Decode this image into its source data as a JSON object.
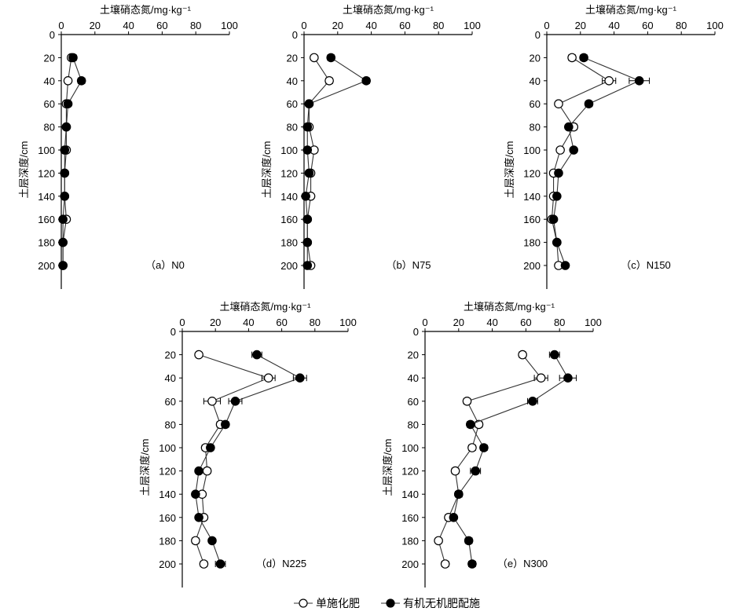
{
  "x_axis_title": "土壤硝态氮/mg·kg⁻¹",
  "y_axis_title": "土层深度/cm",
  "legend": {
    "single": "单施化肥",
    "organic": "有机无机肥配施"
  },
  "style": {
    "single_marker": "open-circle",
    "organic_marker": "filled-circle",
    "marker_stroke": "#000000",
    "single_fill": "#ffffff",
    "organic_fill": "#000000"
  },
  "chart_data": [
    {
      "type": "line",
      "label": "（a）N0",
      "xlabel": "土壤硝态氮/mg·kg⁻¹",
      "ylabel": "土层深度/cm",
      "xlim": [
        0,
        100
      ],
      "ylim": [
        0,
        220
      ],
      "x_ticks": [
        0,
        20,
        40,
        60,
        80,
        100
      ],
      "y_ticks": [
        0,
        20,
        40,
        60,
        80,
        100,
        120,
        140,
        160,
        180,
        200
      ],
      "depth": [
        20,
        40,
        60,
        80,
        100,
        120,
        140,
        160,
        180,
        200
      ],
      "series": [
        {
          "name": "单施化肥",
          "values": [
            6,
            4,
            3,
            3,
            3,
            2,
            2,
            3,
            1,
            1
          ],
          "errors": [
            1,
            1,
            1,
            1,
            1,
            1,
            1,
            1,
            1,
            1
          ]
        },
        {
          "name": "有机无机肥配施",
          "values": [
            7,
            12,
            4,
            3,
            2,
            2,
            2,
            1,
            1,
            1
          ],
          "errors": [
            2,
            2,
            1,
            1,
            1,
            1,
            1,
            1,
            1,
            1
          ]
        }
      ]
    },
    {
      "type": "line",
      "label": "（b）N75",
      "xlabel": "土壤硝态氮/mg·kg⁻¹",
      "ylabel": "土层深度/cm",
      "xlim": [
        0,
        100
      ],
      "ylim": [
        0,
        220
      ],
      "x_ticks": [
        0,
        20,
        40,
        60,
        80,
        100
      ],
      "y_ticks": [
        0,
        20,
        40,
        60,
        80,
        100,
        120,
        140,
        160,
        180,
        200
      ],
      "depth": [
        20,
        40,
        60,
        80,
        100,
        120,
        140,
        160,
        180,
        200
      ],
      "series": [
        {
          "name": "单施化肥",
          "values": [
            6,
            15,
            3,
            3,
            6,
            4,
            4,
            2,
            2,
            4
          ],
          "errors": [
            1,
            2,
            1,
            1,
            1,
            1,
            1,
            1,
            1,
            1
          ]
        },
        {
          "name": "有机无机肥配施",
          "values": [
            16,
            37,
            3,
            2,
            2,
            3,
            1,
            2,
            2,
            2
          ],
          "errors": [
            2,
            2,
            1,
            1,
            1,
            1,
            1,
            1,
            1,
            1
          ]
        }
      ]
    },
    {
      "type": "line",
      "label": "（c）N150",
      "xlabel": "土壤硝态氮/mg·kg⁻¹",
      "ylabel": "土层深度/cm",
      "xlim": [
        0,
        100
      ],
      "ylim": [
        0,
        220
      ],
      "x_ticks": [
        0,
        20,
        40,
        60,
        80,
        100
      ],
      "y_ticks": [
        0,
        20,
        40,
        60,
        80,
        100,
        120,
        140,
        160,
        180,
        200
      ],
      "depth": [
        20,
        40,
        60,
        80,
        100,
        120,
        140,
        160,
        180,
        200
      ],
      "series": [
        {
          "name": "单施化肥",
          "values": [
            15,
            37,
            7,
            16,
            8,
            4,
            4,
            3,
            6,
            7
          ],
          "errors": [
            2,
            4,
            1,
            2,
            1,
            1,
            1,
            1,
            1,
            1
          ]
        },
        {
          "name": "有机无机肥配施",
          "values": [
            22,
            55,
            25,
            13,
            16,
            7,
            6,
            4,
            6,
            11
          ],
          "errors": [
            2,
            6,
            2,
            1,
            1,
            1,
            1,
            1,
            1,
            1
          ]
        }
      ]
    },
    {
      "type": "line",
      "label": "（d）N225",
      "xlabel": "土壤硝态氮/mg·kg⁻¹",
      "ylabel": "土层深度/cm",
      "xlim": [
        0,
        100
      ],
      "ylim": [
        0,
        220
      ],
      "x_ticks": [
        0,
        20,
        40,
        60,
        80,
        100
      ],
      "y_ticks": [
        0,
        20,
        40,
        60,
        80,
        100,
        120,
        140,
        160,
        180,
        200
      ],
      "depth": [
        20,
        40,
        60,
        80,
        100,
        120,
        140,
        160,
        180,
        200
      ],
      "series": [
        {
          "name": "单施化肥",
          "values": [
            10,
            52,
            18,
            23,
            14,
            15,
            12,
            13,
            8,
            13
          ],
          "errors": [
            1,
            4,
            5,
            2,
            2,
            2,
            1,
            1,
            2,
            2
          ]
        },
        {
          "name": "有机无机肥配施",
          "values": [
            45,
            71,
            32,
            26,
            17,
            10,
            8,
            10,
            18,
            23
          ],
          "errors": [
            3,
            4,
            4,
            2,
            1,
            1,
            1,
            1,
            1,
            3
          ]
        }
      ]
    },
    {
      "type": "line",
      "label": "（e）N300",
      "xlabel": "土壤硝态氮/mg·kg⁻¹",
      "ylabel": "土层深度/cm",
      "xlim": [
        0,
        100
      ],
      "ylim": [
        0,
        220
      ],
      "x_ticks": [
        0,
        20,
        40,
        60,
        80,
        100
      ],
      "y_ticks": [
        0,
        20,
        40,
        60,
        80,
        100,
        120,
        140,
        160,
        180,
        200
      ],
      "depth": [
        20,
        40,
        60,
        80,
        100,
        120,
        140,
        160,
        180,
        200
      ],
      "series": [
        {
          "name": "单施化肥",
          "values": [
            58,
            69,
            25,
            32,
            28,
            18,
            20,
            14,
            8,
            12
          ],
          "errors": [
            2,
            4,
            2,
            2,
            2,
            2,
            2,
            2,
            1,
            2
          ]
        },
        {
          "name": "有机无机肥配施",
          "values": [
            77,
            85,
            64,
            27,
            35,
            30,
            20,
            17,
            26,
            28
          ],
          "errors": [
            3,
            5,
            3,
            2,
            2,
            3,
            2,
            1,
            2,
            2
          ]
        }
      ]
    }
  ]
}
